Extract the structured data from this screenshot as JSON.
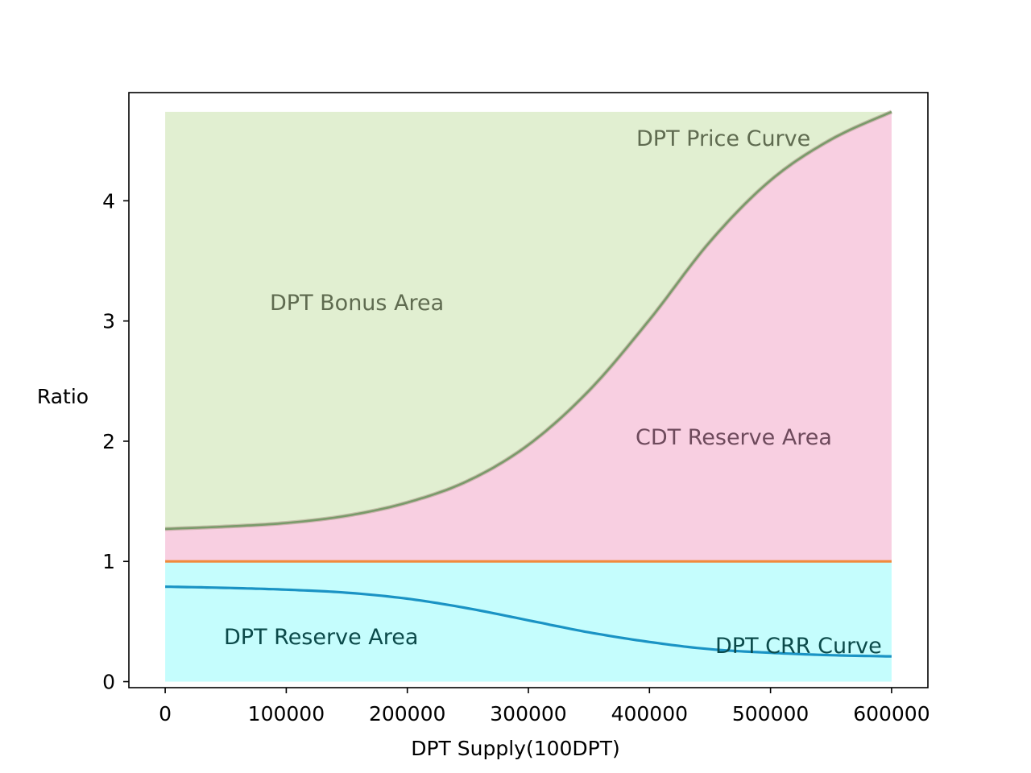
{
  "chart_data": {
    "type": "area",
    "xlabel": "DPT Supply(100DPT)",
    "ylabel": "Ratio",
    "xlim": [
      -30000,
      630000
    ],
    "ylim": [
      -0.05,
      4.9
    ],
    "x_ticks": [
      0,
      100000,
      200000,
      300000,
      400000,
      500000,
      600000
    ],
    "x_tick_labels": [
      "0",
      "100000",
      "200000",
      "300000",
      "400000",
      "500000",
      "600000"
    ],
    "y_ticks": [
      0,
      1,
      2,
      3,
      4
    ],
    "y_tick_labels": [
      "0",
      "1",
      "2",
      "3",
      "4"
    ],
    "grid": false,
    "x": [
      0,
      50000,
      100000,
      150000,
      200000,
      250000,
      300000,
      350000,
      400000,
      450000,
      500000,
      550000,
      600000
    ],
    "series": [
      {
        "key": "price",
        "name": "DPT Price Curve",
        "color": "#7a9a6a",
        "values": [
          1.27,
          1.29,
          1.32,
          1.38,
          1.49,
          1.67,
          1.97,
          2.42,
          3.01,
          3.66,
          4.17,
          4.51,
          4.74
        ]
      },
      {
        "key": "crr",
        "name": "DPT CRR Curve",
        "color": "#1a93c4",
        "values": [
          0.79,
          0.78,
          0.765,
          0.74,
          0.69,
          0.61,
          0.51,
          0.41,
          0.33,
          0.27,
          0.24,
          0.22,
          0.21
        ]
      },
      {
        "key": "baseline",
        "name": "",
        "color": "#f08a3c",
        "values": [
          1,
          1,
          1,
          1,
          1,
          1,
          1,
          1,
          1,
          1,
          1,
          1,
          1
        ]
      }
    ],
    "regions": [
      {
        "key": "bonus",
        "label": "DPT Bonus Area",
        "color": "#e1efd1"
      },
      {
        "key": "cdt",
        "label": "CDT Reserve Area",
        "color": "#f8cfe1"
      },
      {
        "key": "dpt_reserve",
        "label": "DPT Reserve Area",
        "color": "#c5fdfd"
      }
    ],
    "annotations": {
      "price_curve": "DPT Price Curve",
      "bonus_area": "DPT Bonus Area",
      "cdt_reserve": "CDT Reserve Area",
      "dpt_reserve": "DPT Reserve Area",
      "crr_curve": "DPT CRR Curve"
    },
    "annotation_colors": {
      "price_curve": "#5f6b50",
      "bonus_area": "#5f6b50",
      "cdt_reserve": "#6e4a5c",
      "dpt_reserve": "#0b4a4a",
      "crr_curve": "#0b4a4a"
    }
  }
}
